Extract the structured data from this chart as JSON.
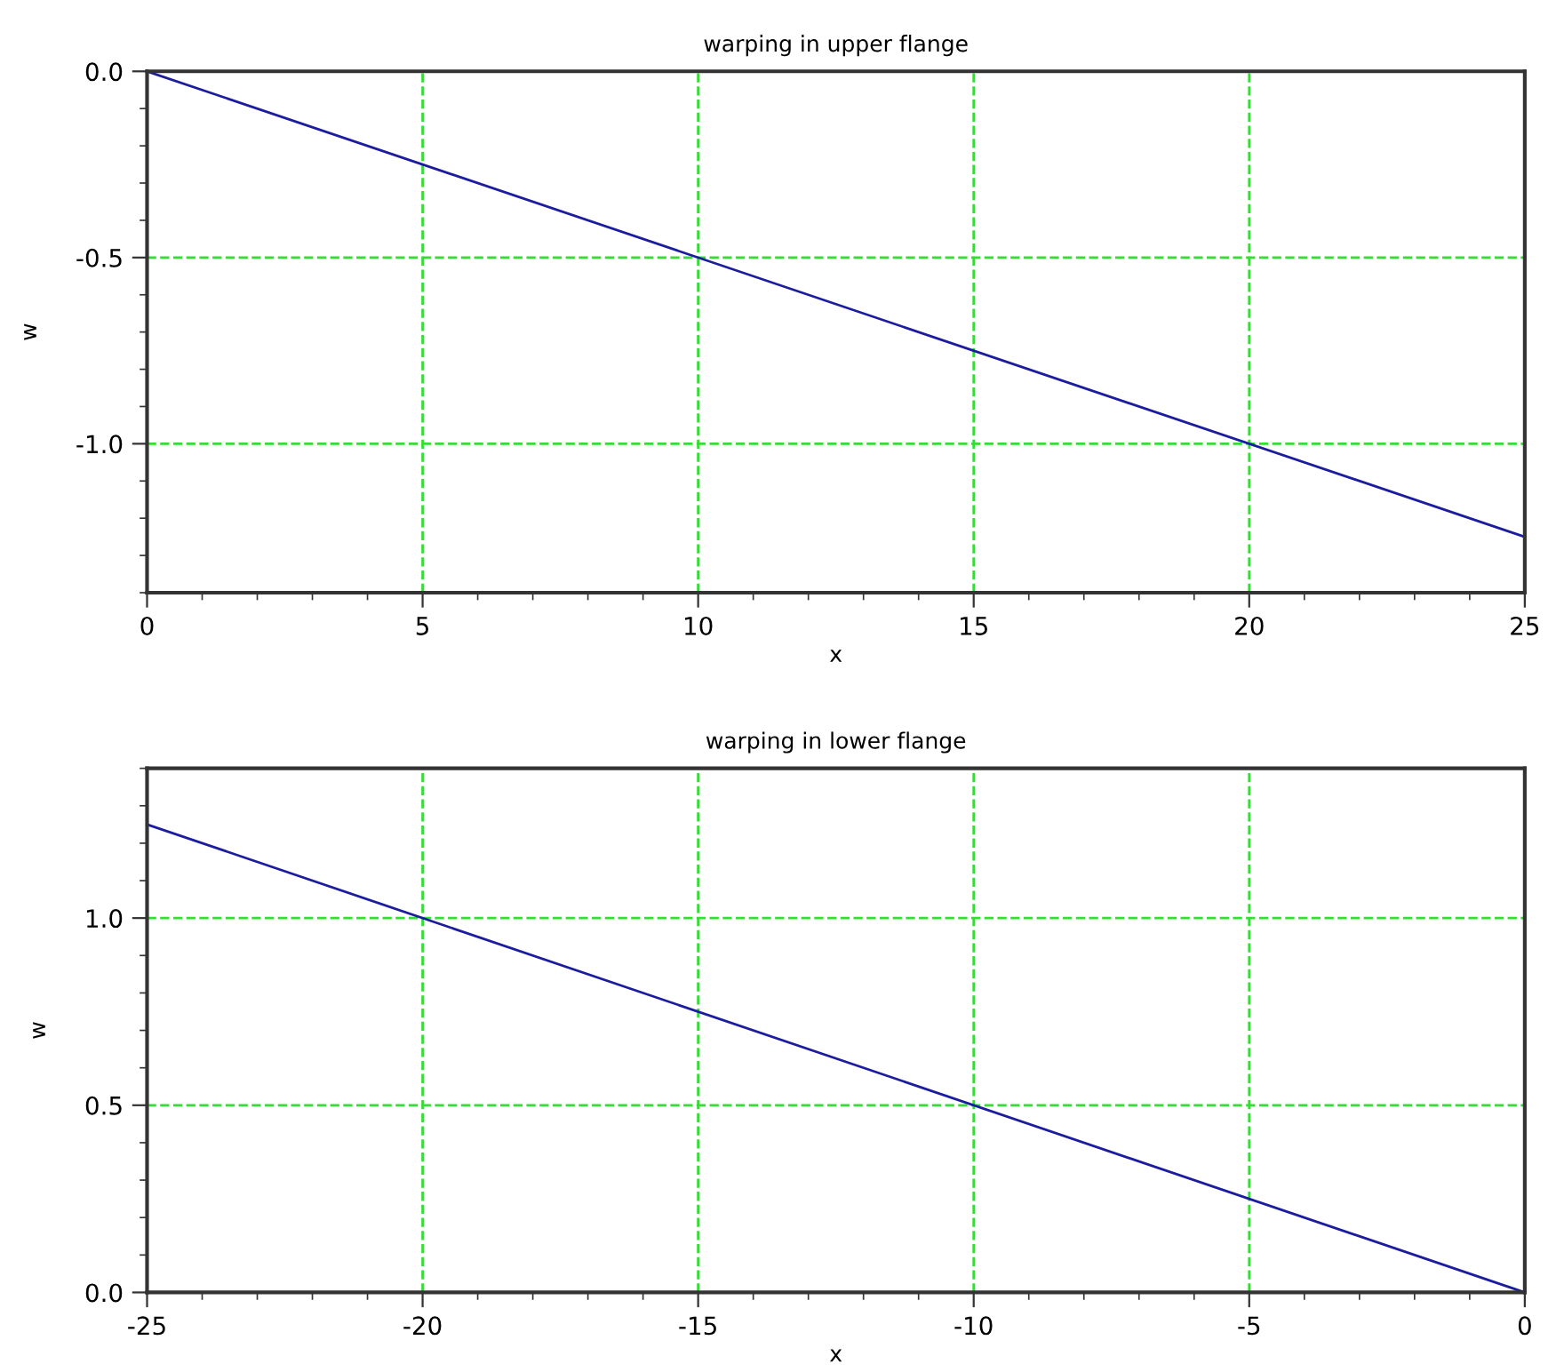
{
  "chart_data": [
    {
      "type": "line",
      "title": "warping in upper flange",
      "xlabel": "x",
      "ylabel": "w",
      "x": [
        0,
        25
      ],
      "series": [
        {
          "color": "#1c1ca0",
          "values": [
            0,
            -1.25
          ]
        }
      ],
      "xlim": [
        0,
        25
      ],
      "xticks": [
        0,
        5,
        10,
        15,
        20,
        25
      ],
      "ylim": [
        -1.4,
        0
      ],
      "yticks": [
        {
          "value": 0,
          "label": "0.0"
        },
        {
          "value": -0.5,
          "label": "-0.5"
        },
        {
          "value": -1.0,
          "label": "-1.0"
        }
      ],
      "grid": true,
      "marker": "none",
      "line_style": "solid"
    },
    {
      "type": "line",
      "title": "warping in lower flange",
      "xlabel": "x",
      "ylabel": "w",
      "x": [
        -25,
        0
      ],
      "series": [
        {
          "color": "#1c1ca0",
          "values": [
            1.25,
            0
          ]
        }
      ],
      "xlim": [
        -25,
        0
      ],
      "xticks": [
        -25,
        -20,
        -15,
        -10,
        -5,
        0
      ],
      "ylim": [
        0,
        1.4
      ],
      "yticks": [
        {
          "value": 0,
          "label": "0.0"
        },
        {
          "value": 0.5,
          "label": "0.5"
        },
        {
          "value": 1.0,
          "label": "1.0"
        }
      ],
      "grid": true,
      "marker": "none",
      "line_style": "solid"
    }
  ]
}
